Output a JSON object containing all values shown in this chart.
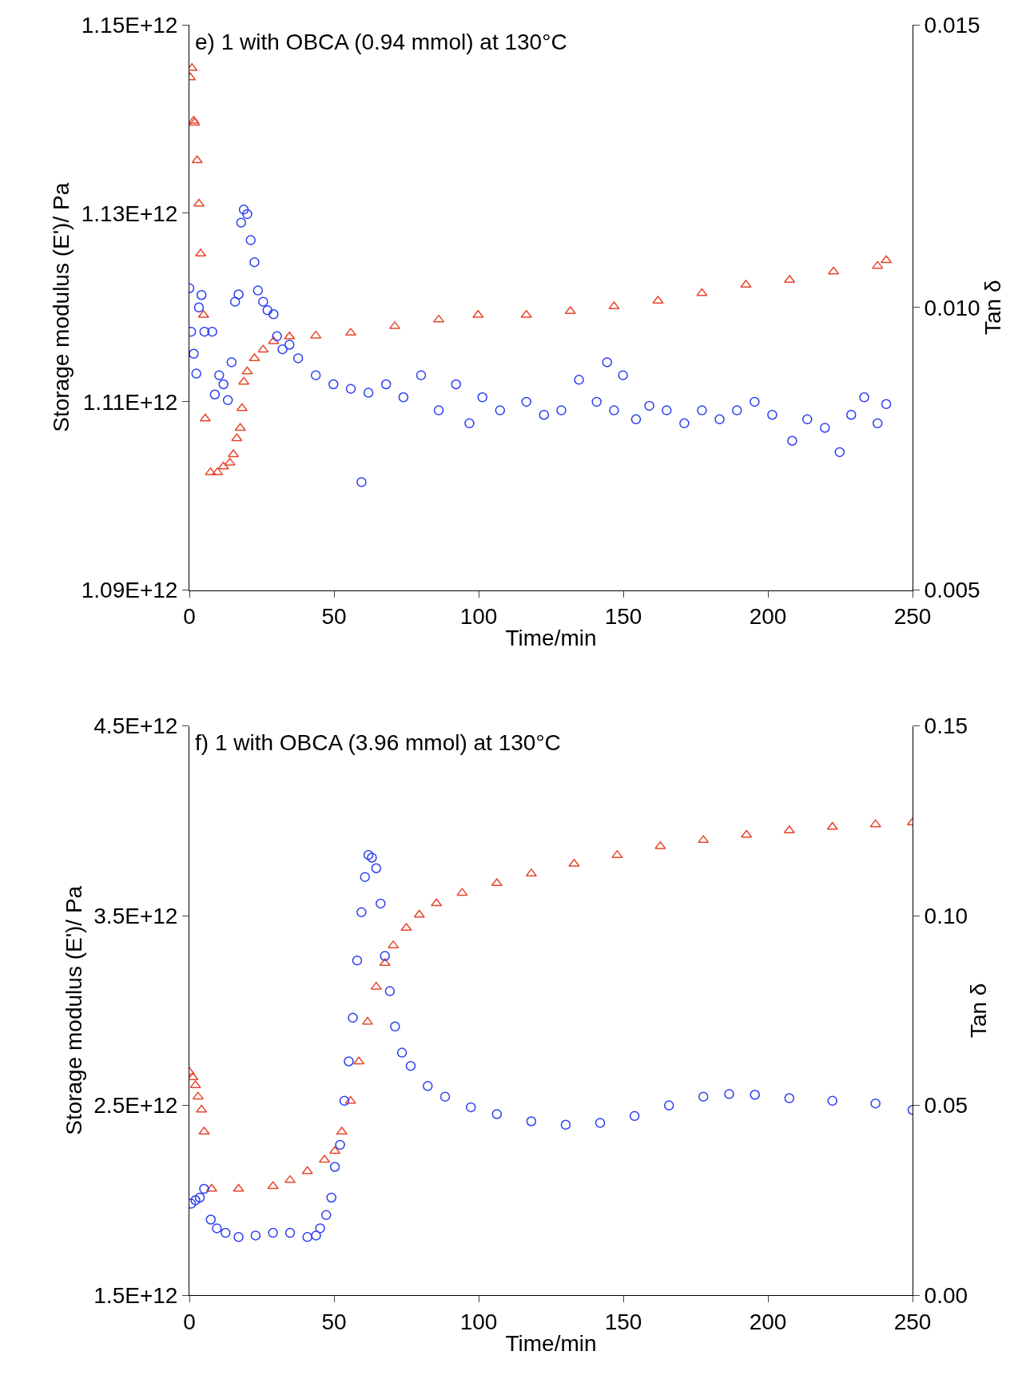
{
  "chart_data": [
    {
      "type": "scatter",
      "title": "e) 1 with OBCA (0.94 mmol) at 130°C",
      "xlabel": "Time/min",
      "ylabel": "Storage modulus (E')/ Pa",
      "y2label": "Tan δ",
      "xlim": [
        0,
        250
      ],
      "xticks": [
        0,
        50,
        100,
        150,
        200,
        250
      ],
      "ylim": [
        1090000000000.0,
        1150000000000.0
      ],
      "yticks": [
        {
          "value": 1090000000000.0,
          "label": "1.09E+12"
        },
        {
          "value": 1110000000000.0,
          "label": "1.11E+12"
        },
        {
          "value": 1130000000000.0,
          "label": "1.13E+12"
        },
        {
          "value": 1150000000000.0,
          "label": "1.15E+12"
        }
      ],
      "y2lim": [
        0.005,
        0.015
      ],
      "y2ticks": [
        0.005,
        {
          "value": 0.01,
          "label": "0.010"
        },
        0.015
      ],
      "series": [
        {
          "color": "#e8452c",
          "marker": "triangle",
          "x": [
            0.3,
            0.9,
            1.5,
            1.8,
            2.7,
            3.3,
            3.9,
            4.9,
            5.5,
            7.3,
            9.7,
            11.8,
            14.0,
            15.2,
            16.4,
            17.6,
            18.2,
            18.8,
            20.0,
            22.5,
            25.5,
            29.1,
            34.6,
            43.7,
            55.8,
            71.0,
            86.2,
            99.8,
            116.5,
            131.7,
            146.8,
            162.0,
            177.2,
            192.4,
            207.5,
            222.7,
            237.9,
            240.9
          ],
          "values": [
            1144400000000.0,
            1145400000000.0,
            1139800000000.0,
            1139600000000.0,
            1135600000000.0,
            1131000000000.0,
            1125700000000.0,
            1119200000000.0,
            1108200000000.0,
            1102500000000.0,
            1102500000000.0,
            1103100000000.0,
            1103500000000.0,
            1104400000000.0,
            1106100000000.0,
            1107200000000.0,
            1109300000000.0,
            1112100000000.0,
            1113200000000.0,
            1114600000000.0,
            1115500000000.0,
            1116400000000.0,
            1116900000000.0,
            1117000000000.0,
            1117300000000.0,
            1118000000000.0,
            1118700000000.0,
            1119200000000.0,
            1119200000000.0,
            1119600000000.0,
            1120100000000.0,
            1120700000000.0,
            1121500000000.0,
            1122400000000.0,
            1122900000000.0,
            1123800000000.0,
            1124400000000.0,
            1125000000000.0
          ]
        },
        {
          "color": "#2b3ff0",
          "marker": "circle",
          "axis": "y2",
          "x": [
            0,
            0.6,
            1.5,
            2.4,
            3.3,
            4.2,
            5.2,
            7.9,
            8.8,
            10.3,
            11.8,
            13.3,
            14.6,
            15.8,
            17.0,
            17.9,
            18.8,
            20.0,
            21.2,
            22.5,
            23.7,
            25.5,
            27.0,
            29.1,
            30.3,
            32.2,
            34.6,
            37.6,
            43.7,
            49.8,
            55.8,
            59.5,
            61.9,
            68.0,
            74.0,
            80.1,
            86.2,
            92.2,
            96.8,
            101.3,
            107.4,
            116.5,
            122.6,
            128.6,
            134.7,
            140.8,
            144.4,
            146.8,
            149.9,
            154.4,
            159.0,
            165.0,
            171.1,
            177.2,
            183.3,
            189.3,
            195.4,
            201.5,
            208.4,
            213.6,
            219.7,
            224.8,
            228.8,
            233.3,
            237.9,
            240.9
          ],
          "values": [
            0.01034,
            0.00957,
            0.00918,
            0.00883,
            0.01,
            0.01022,
            0.00957,
            0.00957,
            0.00846,
            0.0088,
            0.00864,
            0.00836,
            0.00903,
            0.0101,
            0.01023,
            0.0115,
            0.01173,
            0.01165,
            0.01119,
            0.0108,
            0.0103,
            0.0101,
            0.00995,
            0.00988,
            0.00949,
            0.00926,
            0.00934,
            0.0091,
            0.0088,
            0.00864,
            0.00856,
            0.00691,
            0.00849,
            0.00864,
            0.00841,
            0.0088,
            0.00818,
            0.00864,
            0.00795,
            0.00841,
            0.00818,
            0.00833,
            0.0081,
            0.00818,
            0.00872,
            0.00833,
            0.00903,
            0.00818,
            0.0088,
            0.00802,
            0.00826,
            0.00818,
            0.00795,
            0.00818,
            0.00802,
            0.00818,
            0.00833,
            0.0081,
            0.00764,
            0.00802,
            0.00787,
            0.00744,
            0.0081,
            0.00841,
            0.00795,
            0.00829
          ]
        }
      ]
    },
    {
      "type": "scatter",
      "title": "f) 1 with OBCA (3.96 mmol) at 130°C",
      "xlabel": "Time/min",
      "ylabel": "Storage modulus (E')/ Pa",
      "y2label": "Tan δ",
      "xlim": [
        0,
        250
      ],
      "xticks": [
        0,
        50,
        100,
        150,
        200,
        250
      ],
      "ylim": [
        1500000000000.0,
        4500000000000.0
      ],
      "yticks": [
        {
          "value": 1500000000000.0,
          "label": "1.5E+12"
        },
        {
          "value": 2500000000000.0,
          "label": "2.5E+12"
        },
        {
          "value": 3500000000000.0,
          "label": "3.5E+12"
        },
        {
          "value": 4500000000000.0,
          "label": "4.5E+12"
        }
      ],
      "y2lim": [
        0,
        0.15
      ],
      "y2ticks": [
        {
          "value": 0,
          "label": "0.00"
        },
        0.05,
        {
          "value": 0.1,
          "label": "0.10"
        },
        0.15
      ],
      "series": [
        {
          "color": "#e8452c",
          "marker": "triangle",
          "x": [
            0,
            1.2,
            2.1,
            3.0,
            4.2,
            5.1,
            7.7,
            17.0,
            28.9,
            34.8,
            40.8,
            46.7,
            50.3,
            52.7,
            55.7,
            58.6,
            61.6,
            64.6,
            67.6,
            70.5,
            75.0,
            79.5,
            85.4,
            94.3,
            106.3,
            118.2,
            133.0,
            147.9,
            162.8,
            177.7,
            192.6,
            207.4,
            222.3,
            237.2,
            250.0
          ],
          "values": [
            2676000000000.0,
            2648000000000.0,
            2606000000000.0,
            2546000000000.0,
            2477000000000.0,
            2361000000000.0,
            2060000000000.0,
            2060000000000.0,
            2074000000000.0,
            2106000000000.0,
            2153000000000.0,
            2213000000000.0,
            2259000000000.0,
            2361000000000.0,
            2523000000000.0,
            2731000000000.0,
            2940000000000.0,
            3125000000000.0,
            3250000000000.0,
            3343000000000.0,
            3435000000000.0,
            3505000000000.0,
            3565000000000.0,
            3620000000000.0,
            3671000000000.0,
            3722000000000.0,
            3773000000000.0,
            3819000000000.0,
            3866000000000.0,
            3898000000000.0,
            3926000000000.0,
            3949000000000.0,
            3968000000000.0,
            3981000000000.0,
            3991000000000.0
          ]
        },
        {
          "color": "#2b3ff0",
          "marker": "circle",
          "axis": "y2",
          "x": [
            0.6,
            2.1,
            3.6,
            5.1,
            7.4,
            9.5,
            12.5,
            17.0,
            22.9,
            28.9,
            34.8,
            40.8,
            43.8,
            45.2,
            47.3,
            49.1,
            50.3,
            52.1,
            53.6,
            55.1,
            56.5,
            58.0,
            59.5,
            60.7,
            61.9,
            63.1,
            64.6,
            66.1,
            67.6,
            69.3,
            71.1,
            73.5,
            76.5,
            82.4,
            88.4,
            97.3,
            106.3,
            118.2,
            130.1,
            142.0,
            153.9,
            165.8,
            177.7,
            186.6,
            195.5,
            207.4,
            222.3,
            237.2,
            250.0
          ],
          "values": [
            0.0241,
            0.025,
            0.0257,
            0.028,
            0.0199,
            0.0176,
            0.0164,
            0.0153,
            0.0157,
            0.0164,
            0.0164,
            0.0153,
            0.0157,
            0.0176,
            0.0211,
            0.0257,
            0.0338,
            0.0396,
            0.0512,
            0.0616,
            0.0731,
            0.0882,
            0.1009,
            0.1102,
            0.116,
            0.1153,
            0.1125,
            0.1032,
            0.0894,
            0.0801,
            0.0708,
            0.0639,
            0.0604,
            0.0551,
            0.0523,
            0.0495,
            0.0477,
            0.0458,
            0.0449,
            0.0454,
            0.0472,
            0.05,
            0.0523,
            0.053,
            0.0528,
            0.0519,
            0.0512,
            0.0505,
            0.0488
          ]
        }
      ]
    }
  ]
}
